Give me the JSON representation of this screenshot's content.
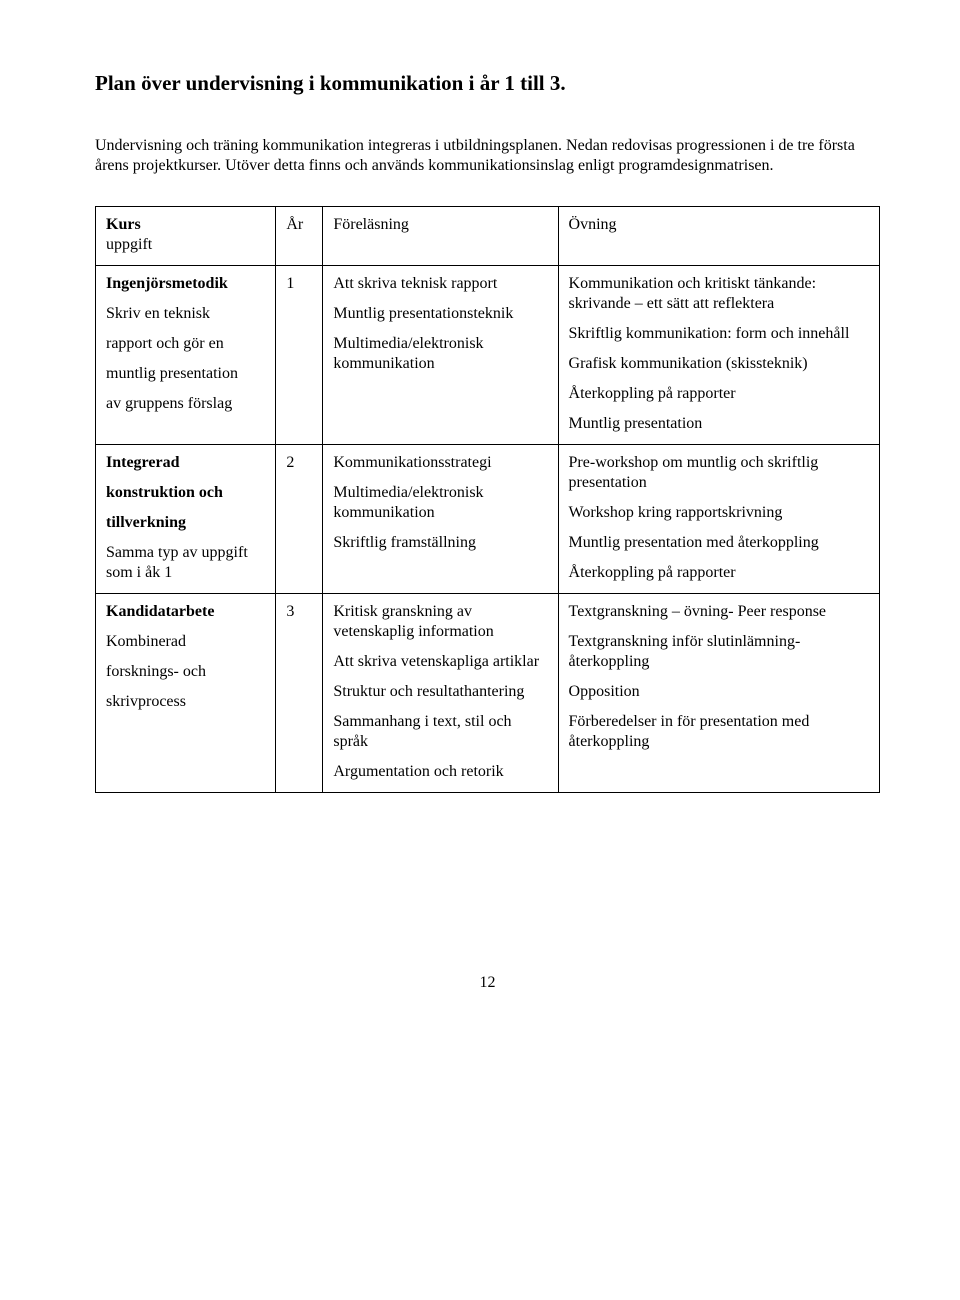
{
  "title": "Plan över undervisning i kommunikation i år 1 till 3.",
  "intro": "Undervisning och träning kommunikation integreras i utbildningsplanen. Nedan redovisas progressionen i de tre första årens projektkurser. Utöver detta finns och används kommunikationsinslag enligt programdesignmatrisen.",
  "page_number": "12",
  "table": {
    "header": {
      "kurs_bold": "Kurs",
      "kurs_sub": "uppgift",
      "ar": "År",
      "forelasning": "Föreläsning",
      "ovning": "Övning"
    },
    "rows": [
      {
        "kurs_bold": "Ingenjörsmetodik",
        "kurs_lines": [
          "Skriv en teknisk",
          "rapport och gör en",
          "muntlig presentation",
          "av gruppens förslag"
        ],
        "ar": "1",
        "forelasning": [
          "Att skriva teknisk rapport",
          "Muntlig presentationsteknik",
          "Multimedia/elektronisk kommunikation"
        ],
        "ovning": [
          "Kommunikation och kritiskt tänkande: skrivande – ett sätt att reflektera",
          "Skriftlig kommunikation: form och innehåll",
          "Grafisk kommunikation (skissteknik)",
          "Återkoppling på rapporter",
          "Muntlig presentation"
        ]
      },
      {
        "kurs_bold": "Integrerad",
        "kurs_bold2": "konstruktion och",
        "kurs_bold3": "tillverkning",
        "kurs_lines": [
          "Samma typ av uppgift som i åk 1"
        ],
        "ar": "2",
        "forelasning": [
          "Kommunikationsstrategi",
          "Multimedia/elektronisk kommunikation",
          "Skriftlig framställning"
        ],
        "ovning": [
          "Pre-workshop om muntlig och skriftlig presentation",
          "Workshop kring rapportskrivning",
          "Muntlig presentation med återkoppling",
          "Återkoppling på rapporter"
        ]
      },
      {
        "kurs_bold": "Kandidatarbete",
        "kurs_lines": [
          "Kombinerad",
          "forsknings- och",
          "skrivprocess"
        ],
        "ar": "3",
        "forelasning": [
          "Kritisk granskning av vetenskaplig information",
          "Att skriva vetenskapliga artiklar",
          "Struktur och resultathantering",
          "Sammanhang i text, stil och språk",
          "Argumentation och retorik"
        ],
        "ovning": [
          "Textgranskning – övning- Peer response",
          "Textgranskning inför slutinlämning- återkoppling",
          "Opposition",
          "Förberedelser in för presentation med återkoppling"
        ]
      }
    ]
  }
}
